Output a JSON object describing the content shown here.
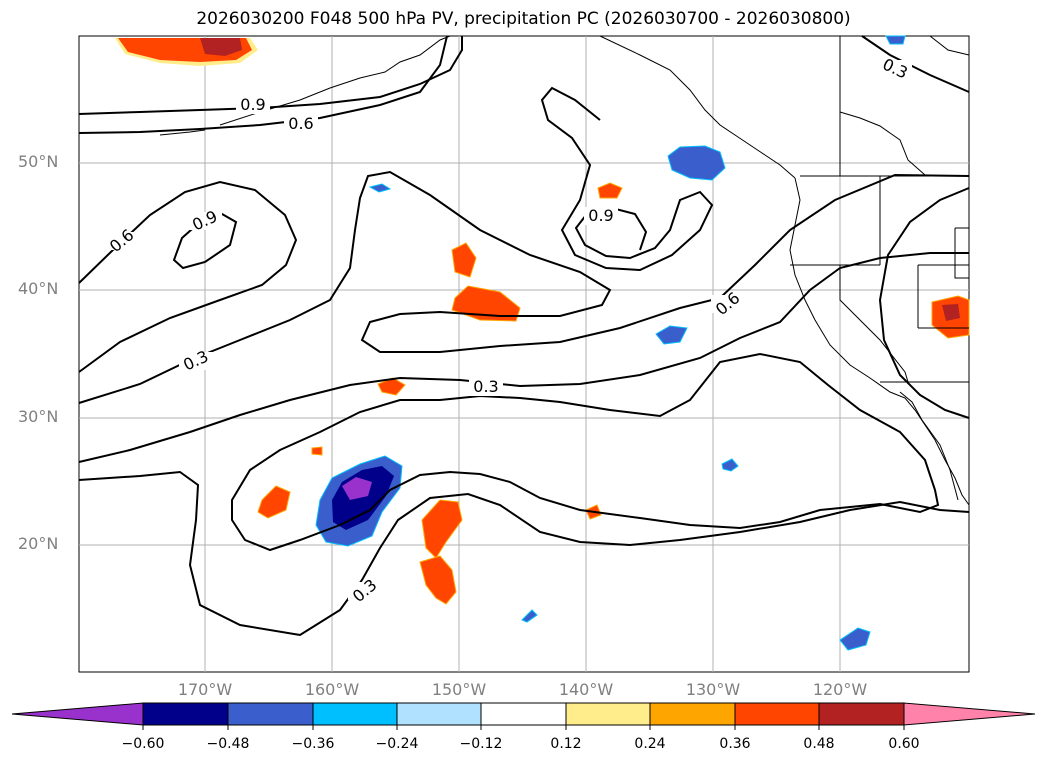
{
  "title": "2026030200 F048 500 hPa PV, precipitation PC (2026030700 - 2026030800)",
  "map": {
    "lat_labels": [
      "50°N",
      "40°N",
      "30°N",
      "20°N"
    ],
    "lon_labels": [
      "170°W",
      "160°W",
      "150°W",
      "140°W",
      "130°W",
      "120°W"
    ],
    "contour_labels": [
      "0.9",
      "0.6",
      "0.9",
      "0.6",
      "0.3",
      "0.3",
      "0.9",
      "0.6",
      "0.3",
      "0.3"
    ]
  },
  "colorbar": {
    "ticks": [
      "−0.60",
      "−0.48",
      "−0.36",
      "−0.24",
      "−0.12",
      "0.12",
      "0.24",
      "0.36",
      "0.48",
      "0.60"
    ],
    "colors": [
      "#9932cc",
      "#00008b",
      "#3a5fcd",
      "#00bfff",
      "#b0e2ff",
      "#ffffff",
      "#ffec8b",
      "#ffa500",
      "#ff4500",
      "#b22222",
      "#ff82ab"
    ]
  }
}
